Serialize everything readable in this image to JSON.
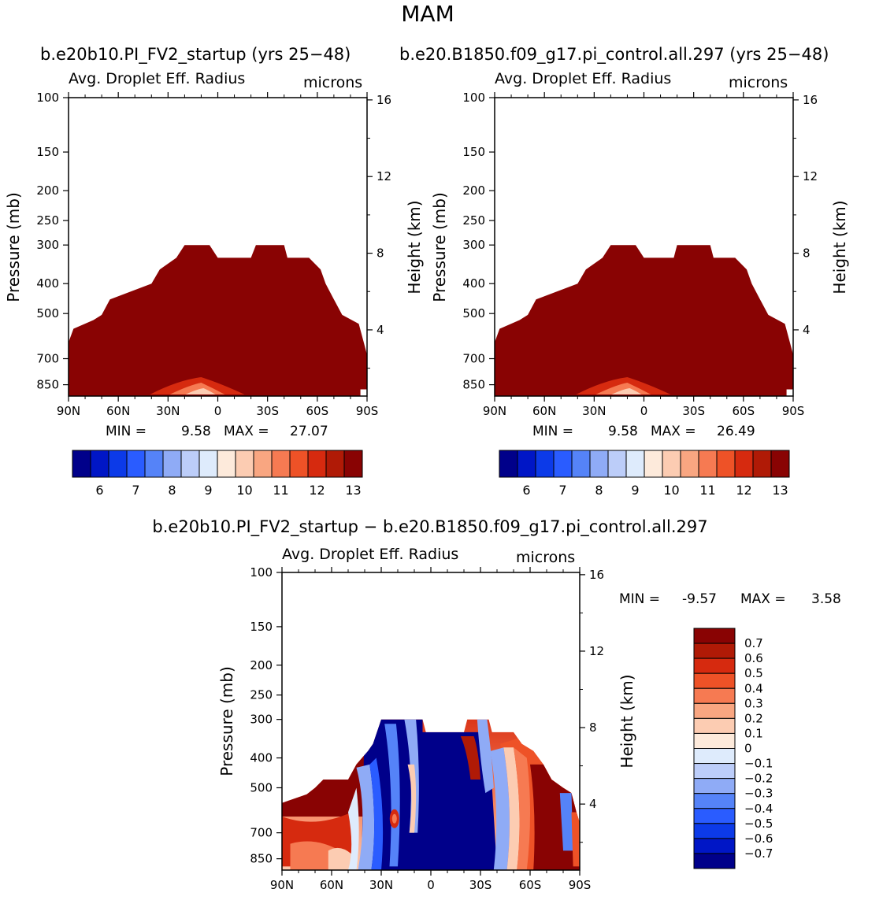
{
  "figure": {
    "title": "MAM",
    "panel_left_title": "b.e20b10.PI_FV2_startup (yrs 25−48)",
    "panel_right_title": "b.e20.B1850.f09_g17.pi_control.all.297 (yrs 25−48)",
    "diff_title": "b.e20b10.PI_FV2_startup − b.e20.B1850.f09_g17.pi_control.all.297"
  },
  "colors": {
    "abs_levels": [
      "#00008a",
      "#0016c6",
      "#0c3ae8",
      "#2a5cff",
      "#5583f8",
      "#8fabf6",
      "#bccdf9",
      "#deebfc",
      "#fdeadb",
      "#fcccb2",
      "#f9a681",
      "#f67a52",
      "#ee5227",
      "#d62a0f",
      "#b01a06",
      "#890303"
    ],
    "diff_levels": [
      "#00008a",
      "#0016c6",
      "#0c3ae8",
      "#2a5cff",
      "#5583f8",
      "#8fabf6",
      "#bccdf9",
      "#deebfc",
      "#fdeadb",
      "#fcccb2",
      "#f9a681",
      "#f67a52",
      "#ee5227",
      "#d62a0f",
      "#b01a06",
      "#890303"
    ]
  },
  "chart_data": [
    {
      "type": "heatmap",
      "panel": "left",
      "title": "Avg. Droplet Eff. Radius",
      "units": "microns",
      "ylabel": "Pressure (mb)",
      "y2label": "Height (km)",
      "xticks": [
        "90N",
        "60N",
        "30N",
        "0",
        "30S",
        "60S",
        "90S"
      ],
      "yticks": [
        "100",
        "150",
        "200",
        "250",
        "300",
        "400",
        "500",
        "700",
        "850"
      ],
      "y2ticks": [
        "16",
        "12",
        "8",
        "4"
      ],
      "min_label": "MIN =",
      "min_value": "9.58",
      "max_label": "MAX =",
      "max_value": "27.07",
      "colorbar_labels": [
        "6",
        "7",
        "8",
        "9",
        "10",
        "11",
        "12",
        "13"
      ],
      "mask_top_pressure": [
        {
          "lat": -90,
          "p": 620
        },
        {
          "lat": -87,
          "p": 560
        },
        {
          "lat": -75,
          "p": 525
        },
        {
          "lat": -70,
          "p": 505
        },
        {
          "lat": -65,
          "p": 450
        },
        {
          "lat": -40,
          "p": 400
        },
        {
          "lat": -35,
          "p": 360
        },
        {
          "lat": -25,
          "p": 330
        },
        {
          "lat": -20,
          "p": 300
        },
        {
          "lat": -5,
          "p": 300
        },
        {
          "lat": 0,
          "p": 330
        },
        {
          "lat": 20,
          "p": 330
        },
        {
          "lat": 23,
          "p": 300
        },
        {
          "lat": 40,
          "p": 300
        },
        {
          "lat": 42,
          "p": 330
        },
        {
          "lat": 55,
          "p": 330
        },
        {
          "lat": 62,
          "p": 360
        },
        {
          "lat": 65,
          "p": 400
        },
        {
          "lat": 70,
          "p": 450
        },
        {
          "lat": 75,
          "p": 505
        },
        {
          "lat": 85,
          "p": 540
        },
        {
          "lat": 88,
          "p": 620
        },
        {
          "lat": 90,
          "p": 680
        }
      ],
      "mask_bottom_pressure_south": 880
    },
    {
      "type": "heatmap",
      "panel": "right",
      "title": "Avg. Droplet Eff. Radius",
      "units": "microns",
      "ylabel": "Pressure (mb)",
      "y2label": "Height (km)",
      "xticks": [
        "90N",
        "60N",
        "30N",
        "0",
        "30S",
        "60S",
        "90S"
      ],
      "yticks": [
        "100",
        "150",
        "200",
        "250",
        "300",
        "400",
        "500",
        "700",
        "850"
      ],
      "y2ticks": [
        "16",
        "12",
        "8",
        "4"
      ],
      "min_label": "MIN =",
      "min_value": "9.58",
      "max_label": "MAX =",
      "max_value": "26.49",
      "colorbar_labels": [
        "6",
        "7",
        "8",
        "9",
        "10",
        "11",
        "12",
        "13"
      ],
      "mask_top_pressure": [
        {
          "lat": -90,
          "p": 620
        },
        {
          "lat": -87,
          "p": 560
        },
        {
          "lat": -75,
          "p": 525
        },
        {
          "lat": -70,
          "p": 505
        },
        {
          "lat": -65,
          "p": 450
        },
        {
          "lat": -40,
          "p": 400
        },
        {
          "lat": -35,
          "p": 360
        },
        {
          "lat": -25,
          "p": 330
        },
        {
          "lat": -20,
          "p": 300
        },
        {
          "lat": -5,
          "p": 300
        },
        {
          "lat": 0,
          "p": 330
        },
        {
          "lat": 18,
          "p": 330
        },
        {
          "lat": 20,
          "p": 300
        },
        {
          "lat": 40,
          "p": 300
        },
        {
          "lat": 42,
          "p": 330
        },
        {
          "lat": 55,
          "p": 330
        },
        {
          "lat": 62,
          "p": 360
        },
        {
          "lat": 65,
          "p": 400
        },
        {
          "lat": 70,
          "p": 450
        },
        {
          "lat": 75,
          "p": 505
        },
        {
          "lat": 85,
          "p": 540
        },
        {
          "lat": 88,
          "p": 620
        },
        {
          "lat": 90,
          "p": 680
        }
      ],
      "mask_bottom_pressure_south": 880
    },
    {
      "type": "heatmap",
      "panel": "difference",
      "title": "Avg. Droplet Eff. Radius",
      "units": "microns",
      "ylabel": "Pressure (mb)",
      "y2label": "Height (km)",
      "xticks": [
        "90N",
        "60N",
        "30N",
        "0",
        "30S",
        "60S",
        "90S"
      ],
      "yticks": [
        "100",
        "150",
        "200",
        "250",
        "300",
        "400",
        "500",
        "700",
        "850"
      ],
      "y2ticks": [
        "16",
        "12",
        "8",
        "4"
      ],
      "min_label": "MIN =",
      "min_value": "-9.57",
      "max_label": "MAX =",
      "max_value": "3.58",
      "colorbar_labels": [
        "0.7",
        "0.6",
        "0.5",
        "0.4",
        "0.3",
        "0.2",
        "0.1",
        "0",
        "−0.1",
        "−0.2",
        "−0.3",
        "−0.4",
        "−0.5",
        "−0.6",
        "−0.7"
      ],
      "mask_top_pressure": [
        {
          "lat": -90,
          "p": 560
        },
        {
          "lat": -75,
          "p": 525
        },
        {
          "lat": -70,
          "p": 500
        },
        {
          "lat": -65,
          "p": 470
        },
        {
          "lat": -50,
          "p": 470
        },
        {
          "lat": -45,
          "p": 420
        },
        {
          "lat": -38,
          "p": 380
        },
        {
          "lat": -35,
          "p": 360
        },
        {
          "lat": -30,
          "p": 300
        },
        {
          "lat": -25,
          "p": 300
        },
        {
          "lat": -20,
          "p": 300
        },
        {
          "lat": -5,
          "p": 300
        },
        {
          "lat": -3,
          "p": 330
        },
        {
          "lat": 20,
          "p": 330
        },
        {
          "lat": 22,
          "p": 300
        },
        {
          "lat": 35,
          "p": 300
        },
        {
          "lat": 37,
          "p": 330
        },
        {
          "lat": 50,
          "p": 330
        },
        {
          "lat": 55,
          "p": 360
        },
        {
          "lat": 62,
          "p": 380
        },
        {
          "lat": 68,
          "p": 420
        },
        {
          "lat": 73,
          "p": 470
        },
        {
          "lat": 80,
          "p": 500
        },
        {
          "lat": 85,
          "p": 520
        },
        {
          "lat": 88,
          "p": 600
        },
        {
          "lat": 90,
          "p": 650
        }
      ]
    }
  ]
}
